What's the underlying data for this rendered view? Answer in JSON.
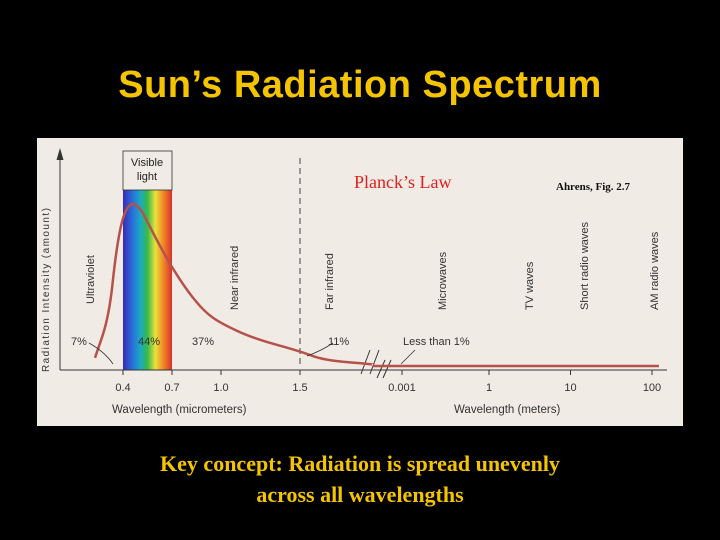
{
  "slide": {
    "title": "Sun’s Radiation Spectrum",
    "key_concept_line1": "Key concept: Radiation is spread unevenly",
    "key_concept_line2": "across all wavelengths"
  },
  "colors": {
    "background": "#000000",
    "title": "#f5c400",
    "curve": "#b5524a",
    "law_label": "#e02020",
    "figure_bg": "#f0ebe4"
  },
  "chart_data": {
    "type": "line",
    "law_label": "Planck’s Law",
    "citation": "Ahrens, Fig. 2.7",
    "ylabel": "Radiation Intensity (amount)",
    "xlabel_left": "Wavelength (micrometers)",
    "xlabel_right": "Wavelength (meters)",
    "visible_band_label_line1": "Visible",
    "visible_band_label_line2": "light",
    "xticks_left": [
      "0.4",
      "0.7",
      "1.0",
      "1.5"
    ],
    "xticks_right": [
      "0.001",
      "1",
      "10",
      "100"
    ],
    "regions": [
      "Ultraviolet",
      "Near infrared",
      "Far infrared",
      "Microwaves",
      "TV waves",
      "Short radio waves",
      "AM radio waves"
    ],
    "percentages": [
      "7%",
      "44%",
      "37%",
      "11%",
      "Less than 1%"
    ],
    "series": [
      {
        "x": [
          0.2,
          0.3,
          0.35,
          0.4,
          0.45,
          0.5,
          0.55,
          0.6,
          0.7,
          0.8,
          0.9,
          1.0,
          1.2,
          1.5,
          2.0,
          3.0
        ],
        "y": [
          0.05,
          0.3,
          0.7,
          0.92,
          1.0,
          0.97,
          0.88,
          0.78,
          0.6,
          0.45,
          0.33,
          0.26,
          0.17,
          0.09,
          0.035,
          0.01
        ]
      }
    ],
    "grid": false
  }
}
